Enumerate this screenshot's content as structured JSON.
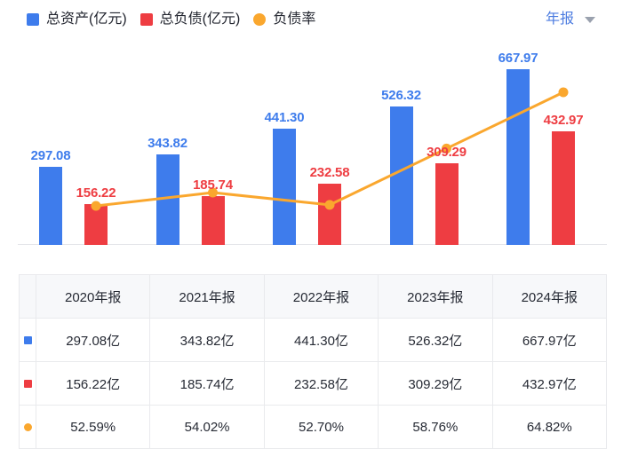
{
  "legend": {
    "items": [
      {
        "label": "总资产(亿元)",
        "color": "#3E7CEC",
        "shape": "square"
      },
      {
        "label": "总负债(亿元)",
        "color": "#EE3D42",
        "shape": "square"
      },
      {
        "label": "负债率",
        "color": "#FAA72E",
        "shape": "circle"
      }
    ]
  },
  "period_selector": {
    "label": "年报",
    "icon": "caret-down"
  },
  "chart_data": {
    "type": "bar+line",
    "categories": [
      "2020年报",
      "2021年报",
      "2022年报",
      "2023年报",
      "2024年报"
    ],
    "series": [
      {
        "name": "总资产(亿元)",
        "type": "bar",
        "color": "#3E7CEC",
        "values": [
          297.08,
          343.82,
          441.3,
          526.32,
          667.97
        ],
        "labels": [
          "297.08",
          "343.82",
          "441.30",
          "526.32",
          "667.97"
        ]
      },
      {
        "name": "总负债(亿元)",
        "type": "bar",
        "color": "#EE3D42",
        "values": [
          156.22,
          185.74,
          232.58,
          309.29,
          432.97
        ],
        "labels": [
          "156.22",
          "185.74",
          "232.58",
          "309.29",
          "432.97"
        ]
      },
      {
        "name": "负债率",
        "type": "line",
        "color": "#FAA72E",
        "unit": "%",
        "values": [
          52.59,
          54.02,
          52.7,
          58.76,
          64.82
        ]
      }
    ],
    "title": "",
    "xlabel": "",
    "ylabel": "",
    "ylim": [
      0,
      700
    ],
    "grid": false,
    "x_axis_tick_labels_shown": false,
    "legend_position": "top-left",
    "value_labels_shown_on_bars": true
  },
  "table": {
    "headers": [
      "2020年报",
      "2021年报",
      "2022年报",
      "2023年报",
      "2024年报"
    ],
    "rows": [
      {
        "marker": "blue-square",
        "values": [
          "297.08亿",
          "343.82亿",
          "441.30亿",
          "526.32亿",
          "667.97亿"
        ]
      },
      {
        "marker": "red-square",
        "values": [
          "156.22亿",
          "185.74亿",
          "232.58亿",
          "309.29亿",
          "432.97亿"
        ]
      },
      {
        "marker": "orange-circle",
        "values": [
          "52.59%",
          "54.02%",
          "52.70%",
          "58.76%",
          "64.82%"
        ]
      }
    ]
  }
}
